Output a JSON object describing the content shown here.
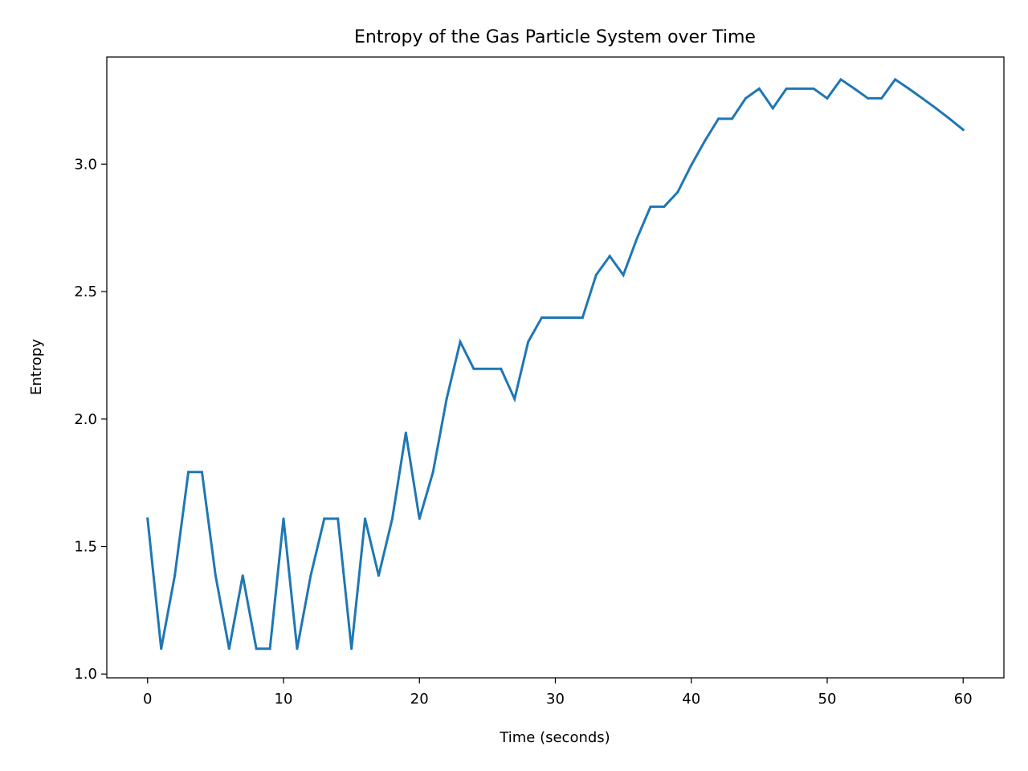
{
  "chart_data": {
    "type": "line",
    "title": "Entropy of the Gas Particle System over Time",
    "xlabel": "Time (seconds)",
    "ylabel": "Entropy",
    "xlim": [
      -3,
      63
    ],
    "ylim": [
      0.985,
      3.42
    ],
    "xticks": [
      0,
      10,
      20,
      30,
      40,
      50,
      60
    ],
    "xtick_labels": [
      "0",
      "10",
      "20",
      "30",
      "40",
      "50",
      "60"
    ],
    "yticks": [
      1.0,
      1.5,
      2.0,
      2.5,
      3.0
    ],
    "ytick_labels": [
      "1.0",
      "1.5",
      "2.0",
      "2.5",
      "3.0"
    ],
    "grid": false,
    "series": [
      {
        "color": "#1f77b4",
        "x": [
          0,
          1,
          2,
          3,
          4,
          5,
          6,
          7,
          8,
          9,
          10,
          11,
          12,
          13,
          14,
          15,
          16,
          17,
          18,
          19,
          20,
          21,
          22,
          23,
          24,
          25,
          26,
          27,
          28,
          29,
          30,
          31,
          32,
          33,
          34,
          35,
          36,
          37,
          38,
          39,
          40,
          41,
          42,
          43,
          44,
          45,
          46,
          47,
          48,
          49,
          50,
          51,
          52,
          53,
          54,
          55,
          56,
          57,
          58,
          59,
          60
        ],
        "y": [
          1.609,
          1.099,
          1.386,
          1.792,
          1.792,
          1.386,
          1.099,
          1.386,
          1.099,
          1.099,
          1.609,
          1.099,
          1.386,
          1.609,
          1.609,
          1.099,
          1.609,
          1.386,
          1.609,
          1.946,
          1.609,
          1.792,
          2.079,
          2.303,
          2.197,
          2.197,
          2.197,
          2.079,
          2.303,
          2.398,
          2.398,
          2.398,
          2.398,
          2.565,
          2.639,
          2.565,
          2.708,
          2.833,
          2.833,
          2.89,
          2.996,
          3.091,
          3.178,
          3.178,
          3.258,
          3.296,
          3.219,
          3.296,
          3.296,
          3.296,
          3.258,
          3.332,
          3.296,
          3.258,
          3.258,
          3.332,
          3.296,
          3.258,
          3.219,
          3.178,
          3.135
        ]
      }
    ]
  }
}
